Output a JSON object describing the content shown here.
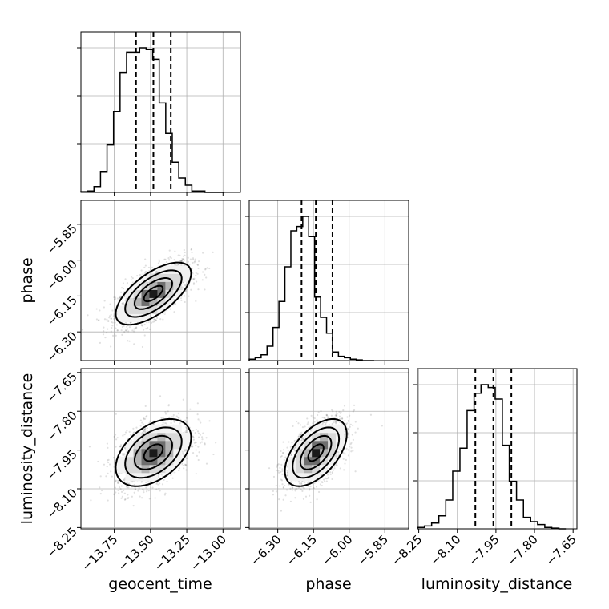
{
  "chart_data": {
    "type": "corner",
    "parameters": [
      "geocent_time",
      "phase",
      "luminosity_distance"
    ],
    "axes": {
      "geocent_time": {
        "range": [
          -13.98,
          -12.88
        ],
        "ticks": [
          -13.75,
          -13.5,
          -13.25,
          -13.0
        ],
        "tick_labels": [
          "−13.75",
          "−13.50",
          "−13.25",
          "−13.00"
        ]
      },
      "phase": {
        "range": [
          -6.42,
          -5.75
        ],
        "ticks": [
          -6.3,
          -6.15,
          -6.0,
          -5.85
        ],
        "tick_labels": [
          "−6.30",
          "−6.15",
          "−6.00",
          "−5.85"
        ]
      },
      "luminosity_distance": {
        "range": [
          -8.255,
          -7.635
        ],
        "ticks": [
          -8.25,
          -8.1,
          -7.95,
          -7.8,
          -7.65
        ],
        "tick_labels": [
          "−8.25",
          "−8.10",
          "−7.95",
          "−7.80",
          "−7.65"
        ]
      }
    },
    "quantiles": {
      "geocent_time": [
        -13.6,
        -13.48,
        -13.36
      ],
      "phase": [
        -6.2,
        -6.14,
        -6.07
      ],
      "luminosity_distance": [
        -8.03,
        -7.96,
        -7.89
      ]
    },
    "histograms": {
      "geocent_time": {
        "edges": [
          -13.98,
          -13.935,
          -13.89,
          -13.845,
          -13.8,
          -13.755,
          -13.71,
          -13.665,
          -13.62,
          -13.575,
          -13.53,
          -13.485,
          -13.44,
          -13.395,
          -13.35,
          -13.305,
          -13.26,
          -13.215,
          -13.17,
          -13.125,
          -13.08,
          -13.035,
          -12.99
        ],
        "counts": [
          0.005,
          0.01,
          0.04,
          0.14,
          0.33,
          0.56,
          0.83,
          0.97,
          0.97,
          1.0,
          0.99,
          0.92,
          0.62,
          0.41,
          0.21,
          0.1,
          0.05,
          0.01,
          0.01,
          0.0,
          0.0,
          0.0
        ]
      },
      "phase": {
        "edges": [
          -6.42,
          -6.395,
          -6.37,
          -6.345,
          -6.32,
          -6.295,
          -6.27,
          -6.245,
          -6.22,
          -6.195,
          -6.17,
          -6.145,
          -6.12,
          -6.095,
          -6.07,
          -6.045,
          -6.02,
          -5.995,
          -5.97,
          -5.945,
          -5.92,
          -5.895
        ],
        "counts": [
          0.01,
          0.02,
          0.04,
          0.1,
          0.23,
          0.41,
          0.65,
          0.9,
          0.93,
          1.0,
          0.86,
          0.44,
          0.3,
          0.19,
          0.06,
          0.03,
          0.02,
          0.01,
          0.005,
          0.0,
          0.0
        ]
      },
      "luminosity_distance": {
        "edges": [
          -8.255,
          -8.228,
          -8.2,
          -8.172,
          -8.145,
          -8.118,
          -8.09,
          -8.062,
          -8.035,
          -8.008,
          -7.98,
          -7.953,
          -7.925,
          -7.898,
          -7.87,
          -7.843,
          -7.815,
          -7.788,
          -7.76,
          -7.733,
          -7.705,
          -7.678
        ],
        "counts": [
          0.01,
          0.02,
          0.04,
          0.09,
          0.2,
          0.4,
          0.56,
          0.82,
          0.94,
          1.0,
          0.98,
          0.9,
          0.58,
          0.33,
          0.2,
          0.08,
          0.05,
          0.03,
          0.01,
          0.005,
          0.0
        ]
      }
    },
    "pairs": [
      {
        "x": "geocent_time",
        "y": "phase",
        "center": [
          -13.48,
          -6.14
        ],
        "sigma": [
          0.13,
          0.065
        ],
        "correlation": 0.65
      },
      {
        "x": "geocent_time",
        "y": "luminosity_distance",
        "center": [
          -13.48,
          -7.96
        ],
        "sigma": [
          0.13,
          0.065
        ],
        "correlation": 0.45
      },
      {
        "x": "phase",
        "y": "luminosity_distance",
        "center": [
          -6.14,
          -7.96
        ],
        "sigma": [
          0.065,
          0.065
        ],
        "correlation": 0.55
      }
    ],
    "contour_levels": [
      0.5,
      1.0,
      1.5,
      2.0
    ],
    "grid": true
  }
}
